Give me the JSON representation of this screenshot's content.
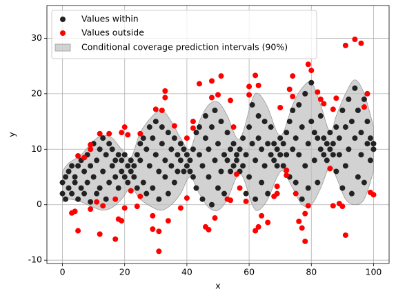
{
  "chart_data": {
    "type": "scatter",
    "x_label": "x",
    "y_label": "y",
    "xlim": [
      -5,
      105
    ],
    "ylim": [
      -10.6,
      35.9
    ],
    "xticks": [
      0,
      20,
      40,
      60,
      80,
      100
    ],
    "yticks": [
      -10,
      0,
      10,
      20,
      30
    ],
    "grid": true,
    "legend": "upper left",
    "series": [
      {
        "name": "Values within",
        "color": "#222222",
        "x": [
          0,
          0,
          1,
          1,
          2,
          2,
          3,
          3,
          4,
          4,
          5,
          5,
          6,
          6,
          7,
          7,
          8,
          8,
          9,
          9,
          10,
          10,
          11,
          11,
          12,
          12,
          13,
          13,
          14,
          14,
          15,
          15,
          16,
          16,
          17,
          17,
          18,
          18,
          19,
          19,
          20,
          20,
          21,
          21,
          22,
          22,
          23,
          23,
          24,
          24,
          25,
          25,
          26,
          26,
          27,
          27,
          28,
          28,
          29,
          29,
          30,
          30,
          31,
          31,
          32,
          32,
          33,
          33,
          34,
          34,
          35,
          35,
          36,
          36,
          37,
          37,
          38,
          38,
          39,
          39,
          40,
          40,
          41,
          41,
          42,
          42,
          43,
          43,
          44,
          44,
          45,
          45,
          46,
          46,
          47,
          47,
          48,
          48,
          49,
          49,
          50,
          50,
          51,
          51,
          52,
          52,
          53,
          53,
          54,
          54,
          55,
          55,
          56,
          56,
          57,
          57,
          58,
          58,
          59,
          59,
          60,
          60,
          61,
          61,
          62,
          62,
          63,
          63,
          64,
          64,
          65,
          65,
          66,
          66,
          67,
          67,
          68,
          68,
          69,
          69,
          70,
          70,
          71,
          71,
          72,
          72,
          73,
          73,
          74,
          74,
          75,
          75,
          76,
          76,
          77,
          77,
          78,
          78,
          79,
          79,
          80,
          80,
          81,
          81,
          82,
          82,
          83,
          83,
          84,
          84,
          85,
          85,
          86,
          86,
          87,
          87,
          88,
          88,
          89,
          89,
          90,
          90,
          91,
          91,
          92,
          92,
          93,
          93,
          94,
          94,
          95,
          95,
          96,
          96,
          97,
          97,
          98,
          98,
          99,
          99,
          100,
          100
        ],
        "values": [
          2,
          4,
          1,
          5,
          3,
          6,
          2,
          7,
          4,
          5,
          1,
          7,
          3,
          8,
          6,
          2,
          4,
          9,
          7,
          0.5,
          5,
          11,
          8,
          2,
          10,
          3,
          6,
          12,
          9,
          1,
          4,
          11,
          7,
          10,
          5,
          8,
          3,
          9,
          6,
          8,
          5,
          9,
          7,
          4,
          6,
          8,
          5,
          7,
          9,
          3,
          8,
          11,
          4,
          12,
          10,
          2,
          7,
          14,
          3,
          12,
          9,
          15,
          1,
          6,
          11,
          14,
          5,
          8,
          13,
          2,
          7,
          10,
          4,
          12,
          9,
          6,
          8,
          11,
          6,
          10,
          7,
          9,
          8,
          6,
          10,
          5,
          3,
          13,
          9,
          14,
          1,
          7,
          12,
          16,
          5,
          10,
          0,
          14,
          17,
          8,
          3,
          11,
          15,
          6,
          9,
          2,
          13,
          8,
          10,
          6,
          7,
          11,
          9,
          8,
          10,
          6,
          7,
          12,
          2,
          9,
          14,
          5,
          18,
          11,
          1,
          8,
          16,
          12,
          4,
          10,
          15,
          7,
          11,
          2,
          9,
          14,
          8,
          11,
          10,
          7,
          9,
          12,
          11,
          7,
          13,
          9,
          5,
          15,
          10,
          17,
          4,
          12,
          18,
          9,
          1,
          14,
          20,
          7,
          11,
          3,
          15,
          22,
          8,
          13,
          12,
          4,
          16,
          10,
          9,
          12,
          11,
          8,
          10,
          13,
          9,
          11,
          14,
          6,
          12,
          9,
          3,
          17,
          14,
          7,
          19,
          10,
          2,
          15,
          21,
          12,
          5,
          17,
          9,
          13,
          19,
          4,
          11,
          15,
          12,
          8,
          11,
          10
        ]
      },
      {
        "name": "Values outside",
        "color": "#ff0000",
        "x": [
          3,
          4,
          5,
          5,
          7,
          9,
          9,
          9,
          11,
          12,
          12,
          13,
          15,
          17,
          17,
          18,
          19,
          19,
          20,
          20,
          21,
          22,
          24,
          25,
          25,
          29,
          29,
          30,
          31,
          31,
          32,
          33,
          33,
          34,
          36,
          38,
          40,
          40,
          42,
          42,
          44,
          46,
          47,
          48,
          48,
          49,
          50,
          51,
          53,
          54,
          54,
          55,
          56,
          57,
          59,
          60,
          60,
          62,
          62,
          63,
          63,
          64,
          66,
          68,
          69,
          69,
          70,
          72,
          72,
          73,
          74,
          74,
          75,
          76,
          77,
          78,
          78,
          79,
          79,
          80,
          82,
          83,
          84,
          86,
          87,
          87,
          88,
          89,
          90,
          91,
          91,
          94,
          96,
          97,
          98,
          99,
          100
        ],
        "values": [
          -1.5,
          -1.2,
          8.8,
          -4.7,
          8.5,
          -0.8,
          10,
          10.8,
          0.5,
          -5.3,
          12.8,
          -0.2,
          12.8,
          -6.2,
          1,
          -2.6,
          -2.9,
          13,
          14,
          -0.6,
          12.6,
          2.5,
          -0.3,
          1.5,
          12.8,
          -2,
          -4.4,
          17.2,
          -4.8,
          -8.4,
          17,
          19.3,
          20.5,
          -2.9,
          14.2,
          -0.6,
          12,
          1.2,
          15,
          13.8,
          21.8,
          -4,
          -4.5,
          19.3,
          22.3,
          -2.4,
          19.8,
          23.2,
          1,
          18.8,
          0.8,
          14,
          5.5,
          3,
          0.6,
          19.8,
          21.3,
          -4.7,
          23.3,
          -4,
          21.5,
          -2,
          -3.2,
          1.5,
          2,
          3.3,
          17.5,
          6.2,
          5.3,
          20.8,
          19.5,
          23.2,
          2,
          -3,
          -4.2,
          -1.6,
          -6.6,
          25.3,
          -0.2,
          24.2,
          20.3,
          19,
          18.2,
          6.5,
          -0.2,
          17.2,
          19.2,
          0.2,
          -0.3,
          28.7,
          -5.5,
          29.8,
          29.1,
          17.6,
          20,
          2.2,
          1.8
        ]
      }
    ],
    "intervals": {
      "name": "Conditional coverage prediction intervals (90%)",
      "color": "#bfbfbf",
      "x": [
        0,
        2,
        6,
        10,
        13,
        16,
        19,
        22,
        25,
        29,
        32,
        35,
        38,
        41,
        44,
        47,
        50,
        53,
        56,
        58,
        61,
        63,
        66,
        69,
        71,
        74,
        77,
        80,
        83,
        86,
        88,
        91,
        94,
        97,
        100
      ],
      "lower": [
        0.5,
        1,
        0.5,
        -0.5,
        -1,
        -0.5,
        1,
        3,
        1,
        -0.5,
        -1,
        0,
        2,
        5,
        2,
        -0.5,
        -1,
        1,
        5,
        5,
        0,
        -1,
        1,
        5,
        6,
        3,
        0,
        0,
        3,
        7,
        5,
        1,
        0,
        1,
        6
      ],
      "upper": [
        6,
        7.5,
        9,
        11.5,
        12.5,
        12,
        10,
        8.5,
        13,
        16,
        17,
        15,
        12,
        10,
        15,
        18,
        18.5,
        16,
        12,
        13,
        19,
        20,
        17.5,
        13,
        13,
        18,
        21,
        22,
        18,
        13,
        16,
        20,
        22.5,
        20,
        14
      ]
    }
  }
}
